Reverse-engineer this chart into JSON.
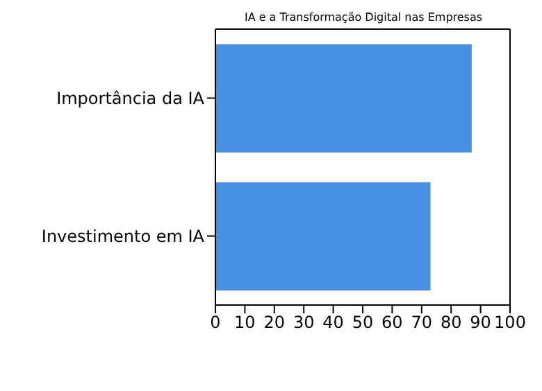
{
  "chart_data": {
    "type": "bar",
    "orientation": "horizontal",
    "title": "IA e a Transformação Digital nas Empresas",
    "categories": [
      "Importância da IA",
      "Investimento em IA"
    ],
    "values": [
      87,
      73
    ],
    "color": "#4a90e2",
    "xlim": [
      0,
      100
    ],
    "xticks": [
      0,
      10,
      20,
      30,
      40,
      50,
      60,
      70,
      80,
      90,
      100
    ],
    "grid": false
  }
}
